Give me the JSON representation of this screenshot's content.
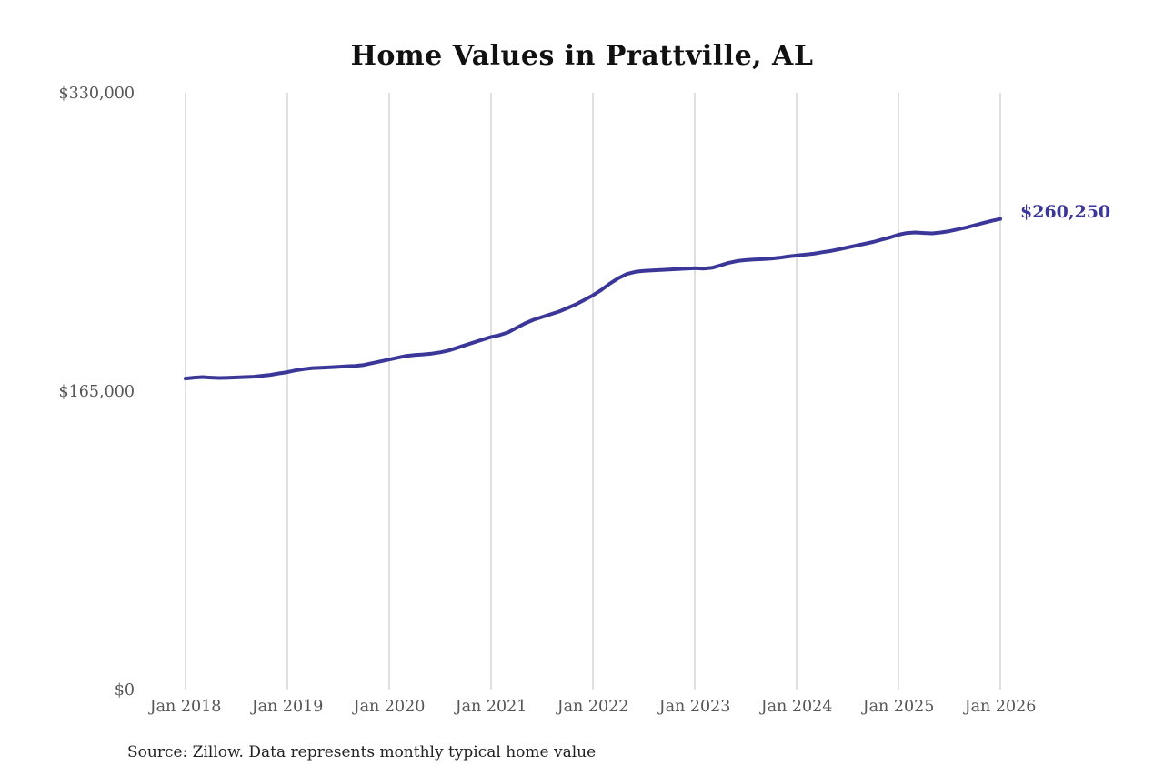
{
  "page": {
    "title": "Home Values in Prattville, AL",
    "source_note": "Source: Zillow. Data represents monthly typical home value",
    "end_value_label": "$260,250"
  },
  "chart_data": {
    "type": "line",
    "title": "Home Values in Prattville, AL",
    "xlabel": "",
    "ylabel": "",
    "ylim": [
      0,
      330000
    ],
    "grid": "vertical-only",
    "legend": "none",
    "line_color": "#3b3798",
    "grid_color": "#cccccc",
    "tick_label_color": "#565656",
    "x_tick_labels": [
      "Jan 2018",
      "Jan 2019",
      "Jan 2020",
      "Jan 2021",
      "Jan 2022",
      "Jan 2023",
      "Jan 2024",
      "Jan 2025",
      "Jan 2026"
    ],
    "y_ticks": [
      {
        "value": 0,
        "label": "$0"
      },
      {
        "value": 165000,
        "label": "$165,000"
      },
      {
        "value": 330000,
        "label": "$330,000"
      }
    ],
    "series_name": "Monthly typical home value",
    "x_start": "Jan 2018",
    "x_end": "Jan 2026",
    "points_per_year": 12,
    "values": [
      172000,
      172500,
      172800,
      172500,
      172300,
      172400,
      172600,
      172800,
      173000,
      173500,
      174000,
      174800,
      175500,
      176500,
      177200,
      177800,
      178000,
      178200,
      178500,
      178800,
      179000,
      179500,
      180500,
      181500,
      182500,
      183500,
      184500,
      185000,
      185300,
      185800,
      186500,
      187500,
      189000,
      190500,
      192000,
      193500,
      195000,
      196000,
      197500,
      200000,
      202500,
      204500,
      206000,
      207500,
      209000,
      211000,
      213000,
      215500,
      218000,
      221000,
      224500,
      227500,
      229800,
      231000,
      231500,
      231800,
      232000,
      232300,
      232500,
      232800,
      233000,
      232800,
      233200,
      234500,
      236000,
      237000,
      237500,
      237800,
      238000,
      238300,
      238800,
      239500,
      240000,
      240500,
      241000,
      241800,
      242500,
      243500,
      244500,
      245500,
      246500,
      247500,
      248800,
      250000,
      251500,
      252500,
      252800,
      252500,
      252300,
      252800,
      253500,
      254500,
      255500,
      256800,
      258000,
      259200,
      260250
    ],
    "final_value": 260250,
    "final_value_label": "$260,250"
  }
}
